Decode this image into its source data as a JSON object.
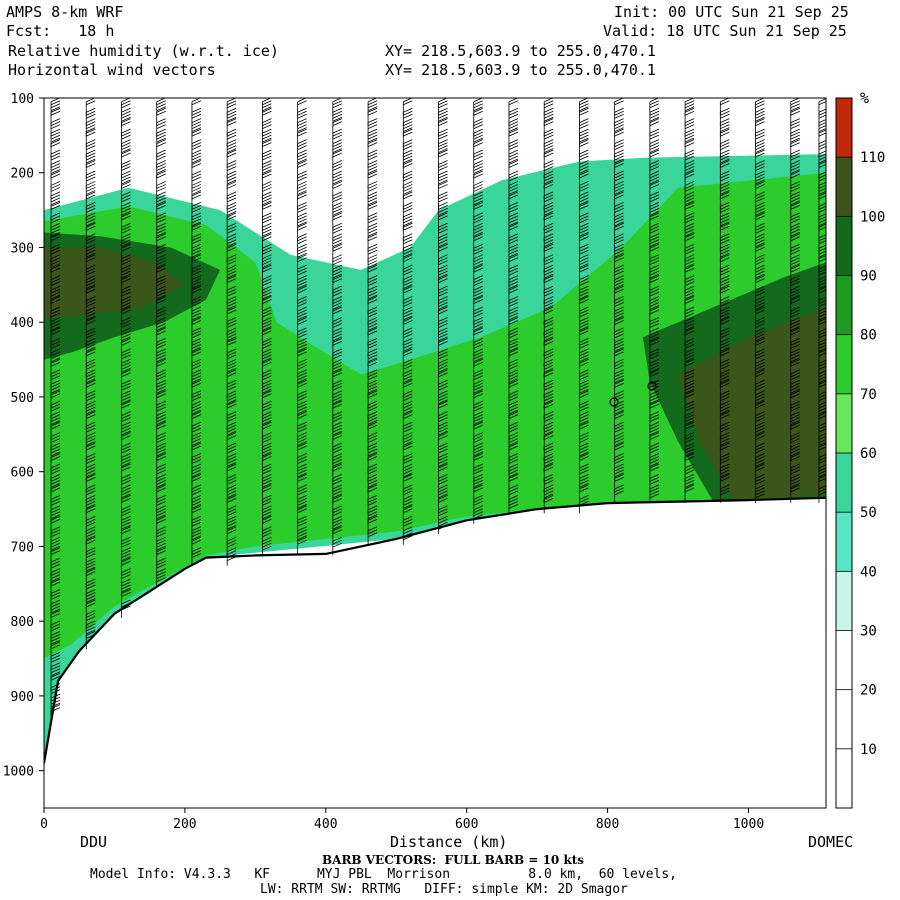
{
  "header": {
    "model": "AMPS 8-km WRF",
    "forecast": "Fcst:   18 h",
    "field1": "Relative humidity (w.r.t. ice)",
    "field2": "Horizontal wind vectors",
    "init": "Init: 00 UTC Sun 21 Sep 25",
    "valid": "Valid: 18 UTC Sun 21 Sep 25",
    "xy1": "XY= 218.5,603.9 to 255.0,470.1",
    "xy2": "XY= 218.5,603.9 to 255.0,470.1"
  },
  "footer": {
    "left_station": "DDU",
    "right_station": "DOMEC",
    "barb_note": "BARB VECTORS:  FULL BARB = 10 kts",
    "model_info": "Model Info: V4.3.3   KF      MYJ PBL  Morrison          8.0 km,  60 levels,",
    "physics": "LW: RRTM SW: RRTMG   DIFF: simple KM: 2D Smagor"
  },
  "chart_data": {
    "type": "heatmap",
    "xlabel": "Distance (km)",
    "ylabel": "",
    "xlim": [
      0,
      1110
    ],
    "ylim": [
      1050,
      100
    ],
    "y_inverted": true,
    "x_ticks": [
      0,
      200,
      400,
      600,
      800,
      1000
    ],
    "y_ticks": [
      100,
      200,
      300,
      400,
      500,
      600,
      700,
      800,
      900,
      1000
    ],
    "colorbar": {
      "unit": "%",
      "levels": [
        10,
        20,
        30,
        40,
        50,
        60,
        70,
        80,
        90,
        100,
        110
      ],
      "colors": [
        "#ffffff",
        "#ffffff",
        "#ffffff",
        "#c8f5e8",
        "#55e6c4",
        "#39d59a",
        "#66e85a",
        "#2ccc2c",
        "#1c9a22",
        "#146a1c",
        "#3a5618",
        "#c0280a"
      ]
    },
    "terrain_pressure": [
      [
        0,
        990
      ],
      [
        20,
        880
      ],
      [
        50,
        840
      ],
      [
        100,
        790
      ],
      [
        150,
        760
      ],
      [
        200,
        730
      ],
      [
        230,
        715
      ],
      [
        300,
        712
      ],
      [
        400,
        710
      ],
      [
        500,
        690
      ],
      [
        600,
        665
      ],
      [
        700,
        650
      ],
      [
        800,
        642
      ],
      [
        900,
        640
      ],
      [
        1000,
        638
      ],
      [
        1110,
        635
      ]
    ],
    "rh_regions": [
      {
        "level": 50,
        "polygon": [
          [
            0,
            250
          ],
          [
            120,
            220
          ],
          [
            250,
            250
          ],
          [
            350,
            310
          ],
          [
            450,
            330
          ],
          [
            520,
            300
          ],
          [
            560,
            250
          ],
          [
            650,
            210
          ],
          [
            760,
            185
          ],
          [
            850,
            180
          ],
          [
            1110,
            175
          ],
          [
            1110,
            640
          ],
          [
            700,
            650
          ],
          [
            500,
            690
          ],
          [
            230,
            715
          ],
          [
            100,
            790
          ],
          [
            0,
            990
          ]
        ]
      },
      {
        "level": 70,
        "polygon": [
          [
            0,
            265
          ],
          [
            120,
            245
          ],
          [
            230,
            270
          ],
          [
            300,
            320
          ],
          [
            330,
            400
          ],
          [
            380,
            430
          ],
          [
            450,
            470
          ],
          [
            520,
            450
          ],
          [
            620,
            420
          ],
          [
            720,
            380
          ],
          [
            820,
            300
          ],
          [
            900,
            220
          ],
          [
            1110,
            200
          ],
          [
            1110,
            640
          ],
          [
            700,
            650
          ],
          [
            600,
            660
          ],
          [
            500,
            680
          ],
          [
            300,
            700
          ],
          [
            230,
            712
          ],
          [
            100,
            780
          ],
          [
            40,
            830
          ],
          [
            0,
            850
          ]
        ]
      },
      {
        "level": 90,
        "polygon": [
          [
            0,
            280
          ],
          [
            80,
            285
          ],
          [
            180,
            300
          ],
          [
            250,
            330
          ],
          [
            230,
            370
          ],
          [
            170,
            400
          ],
          [
            100,
            420
          ],
          [
            40,
            440
          ],
          [
            0,
            450
          ]
        ]
      },
      {
        "level": 90,
        "polygon": [
          [
            850,
            420
          ],
          [
            950,
            380
          ],
          [
            1050,
            340
          ],
          [
            1110,
            320
          ],
          [
            1110,
            640
          ],
          [
            950,
            640
          ],
          [
            900,
            560
          ],
          [
            860,
            480
          ]
        ]
      },
      {
        "level": 100,
        "polygon": [
          [
            0,
            300
          ],
          [
            80,
            300
          ],
          [
            160,
            320
          ],
          [
            200,
            350
          ],
          [
            140,
            380
          ],
          [
            60,
            390
          ],
          [
            0,
            395
          ]
        ]
      },
      {
        "level": 100,
        "polygon": [
          [
            900,
            470
          ],
          [
            1000,
            420
          ],
          [
            1110,
            380
          ],
          [
            1110,
            630
          ],
          [
            980,
            640
          ],
          [
            930,
            560
          ]
        ]
      }
    ],
    "barb_columns_x": [
      10,
      60,
      110,
      160,
      210,
      260,
      310,
      360,
      410,
      460,
      510,
      560,
      610,
      660,
      710,
      760,
      810,
      860,
      910,
      960,
      1010,
      1060,
      1100
    ]
  }
}
